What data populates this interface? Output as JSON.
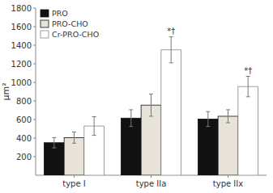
{
  "chart_data": {
    "type": "bar",
    "categories": [
      "type I",
      "type IIa",
      "type IIx"
    ],
    "series": [
      {
        "name": "PRO",
        "color": "#111111",
        "values": [
          350,
          615,
          605
        ],
        "errors": [
          55,
          90,
          80
        ]
      },
      {
        "name": "PRO-CHO",
        "color": "#e8e3d8",
        "values": [
          405,
          755,
          635
        ],
        "errors": [
          60,
          120,
          70
        ]
      },
      {
        "name": "Cr-PRO-CHO",
        "color": "#ffffff",
        "values": [
          530,
          1350,
          955
        ],
        "errors": [
          100,
          140,
          110
        ],
        "annotations": [
          null,
          "*†",
          "*†"
        ]
      }
    ],
    "ylabel": "μm²",
    "ylim": [
      0,
      1800
    ],
    "yticks": [
      200,
      400,
      600,
      800,
      1000,
      1200,
      1400,
      1600,
      1800
    ],
    "grid": false,
    "legend": "upper left"
  }
}
